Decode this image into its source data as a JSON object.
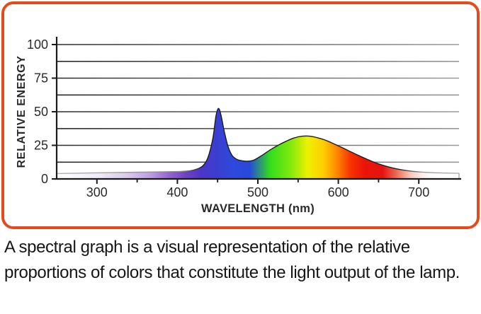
{
  "frame": {
    "border_color": "#E54A1E",
    "background": "#ffffff"
  },
  "caption": {
    "text": "A spectral graph is a visual representation of the relative proportions of colors that constitute the light output of the lamp."
  },
  "chart_data": {
    "type": "area",
    "title": "",
    "xlabel": "WAVELENGTH (nm)",
    "ylabel": "RELATIVE ENERGY",
    "xlim": [
      250,
      750
    ],
    "ylim": [
      0,
      100
    ],
    "grid": "horizontal gridlines every 12.5 units, legend none",
    "x_ticks_major": [
      300,
      400,
      500,
      600,
      700
    ],
    "x_tick_labels": [
      "300",
      "400",
      "500",
      "600",
      "700"
    ],
    "x_ticks_minor": [
      350,
      450,
      550,
      650
    ],
    "y_ticks_major": [
      0,
      25,
      50,
      75,
      100
    ],
    "y_tick_labels": [
      "0",
      "25",
      "50",
      "75",
      "100"
    ],
    "y_gridlines": [
      12.5,
      25,
      37.5,
      50,
      62.5,
      75,
      87.5,
      100
    ],
    "notable_points": {
      "blue_spike": {
        "wavelength_nm": 450,
        "relative_energy": 52
      },
      "valley": {
        "wavelength_nm": 485,
        "relative_energy": 13.5
      },
      "broad_peak": {
        "wavelength_nm": 557,
        "relative_energy": 32
      },
      "baseline_level": 5
    },
    "curve": {
      "wavelength_nm": [
        250,
        300,
        350,
        400,
        415,
        425,
        432,
        438,
        444,
        448,
        451,
        454,
        458,
        463,
        468,
        474,
        481,
        488,
        495,
        505,
        515,
        525,
        535,
        545,
        555,
        565,
        575,
        585,
        595,
        605,
        615,
        625,
        635,
        645,
        655,
        665,
        675,
        685,
        700,
        720,
        750
      ],
      "relative_energy": [
        4,
        4.5,
        5,
        5.5,
        6,
        7.5,
        10,
        16,
        30,
        47,
        52.5,
        48,
        36,
        24,
        17.5,
        14.5,
        13.4,
        13.2,
        14,
        17.5,
        21.5,
        25,
        28,
        30.5,
        31.8,
        31.8,
        30.5,
        28.6,
        26,
        23.2,
        20.3,
        17.5,
        14.8,
        12.3,
        10.2,
        8.5,
        7.2,
        6.2,
        5.2,
        4.6,
        4.2
      ]
    },
    "spectrum_gradient_stops": [
      {
        "wavelength_nm": 250,
        "color": "#ffffff"
      },
      {
        "wavelength_nm": 300,
        "color": "#f1ecfa"
      },
      {
        "wavelength_nm": 335,
        "color": "#dcccf0"
      },
      {
        "wavelength_nm": 365,
        "color": "#bfa0e4"
      },
      {
        "wavelength_nm": 390,
        "color": "#9465d2"
      },
      {
        "wavelength_nm": 410,
        "color": "#7142c6"
      },
      {
        "wavelength_nm": 430,
        "color": "#4c35c8"
      },
      {
        "wavelength_nm": 450,
        "color": "#3a3fd0"
      },
      {
        "wavelength_nm": 468,
        "color": "#2e49dc"
      },
      {
        "wavelength_nm": 490,
        "color": "#2749da"
      },
      {
        "wavelength_nm": 515,
        "color": "#32dd1c"
      },
      {
        "wavelength_nm": 540,
        "color": "#7fe90d"
      },
      {
        "wavelength_nm": 562,
        "color": "#eef000"
      },
      {
        "wavelength_nm": 582,
        "color": "#ffcc00"
      },
      {
        "wavelength_nm": 598,
        "color": "#ff8800"
      },
      {
        "wavelength_nm": 615,
        "color": "#f83300"
      },
      {
        "wavelength_nm": 632,
        "color": "#ec1408"
      },
      {
        "wavelength_nm": 655,
        "color": "#e41312"
      },
      {
        "wavelength_nm": 672,
        "color": "#ec6a52"
      },
      {
        "wavelength_nm": 690,
        "color": "#f7c8bc"
      },
      {
        "wavelength_nm": 706,
        "color": "#fdf3f0"
      },
      {
        "wavelength_nm": 725,
        "color": "#ffffff"
      },
      {
        "wavelength_nm": 750,
        "color": "#ffffff"
      }
    ],
    "axis_color": "#1a1a1a",
    "gridline_color_left": "#2b2b2b",
    "gridline_color_right": "#9a9a9a"
  }
}
